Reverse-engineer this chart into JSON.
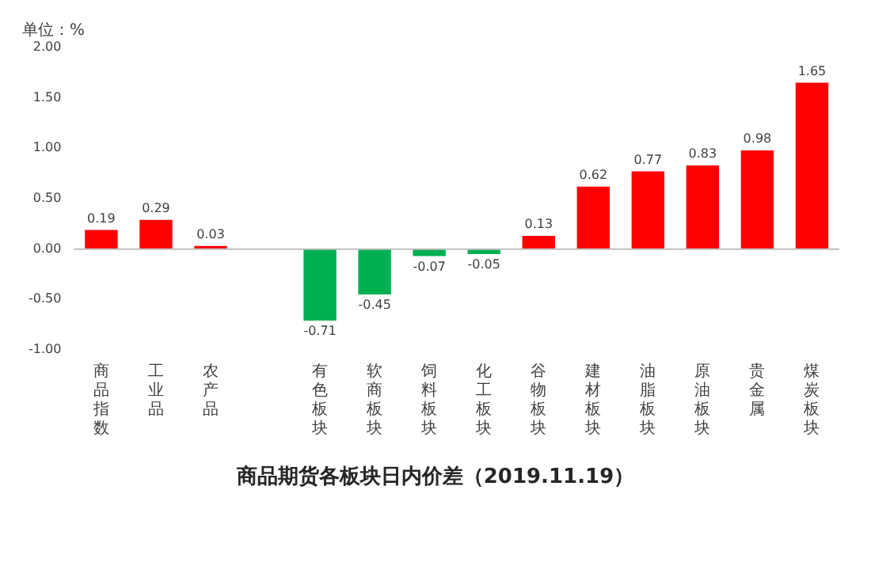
{
  "chart_data": {
    "type": "bar",
    "title": "商品期货各板块日内价差（2019.11.19）",
    "ylabel": "单位：%",
    "categories": [
      "商品指数",
      "工业品",
      "农产品",
      null,
      "有色板块",
      "软商板块",
      "饲料板块",
      "化工板块",
      "谷物板块",
      "建材板块",
      "油脂板块",
      "原油板块",
      "贵金属",
      "煤炭板块"
    ],
    "values": [
      0.19,
      0.29,
      0.03,
      null,
      -0.71,
      -0.45,
      -0.07,
      -0.05,
      0.13,
      0.62,
      0.77,
      0.83,
      0.98,
      1.65
    ],
    "colors": [
      "#ff0000",
      "#ff0000",
      "#ff0000",
      "#ff0000",
      "#00b050",
      "#00b050",
      "#00b050",
      "#00b050",
      "#ff0000",
      "#ff0000",
      "#ff0000",
      "#ff0000",
      "#ff0000",
      "#ff0000"
    ],
    "ylim": [
      -1,
      2
    ],
    "yticks": [
      {
        "value": -1,
        "label": "-1.00"
      },
      {
        "value": -0.5,
        "label": "-0.50"
      },
      {
        "value": 0,
        "label": "0.00"
      },
      {
        "value": 0.5,
        "label": "0.50"
      },
      {
        "value": 1,
        "label": "1.00"
      },
      {
        "value": 1.5,
        "label": "1.50"
      },
      {
        "value": 2,
        "label": "2.00"
      }
    ],
    "data_labels": true,
    "legend": false
  }
}
